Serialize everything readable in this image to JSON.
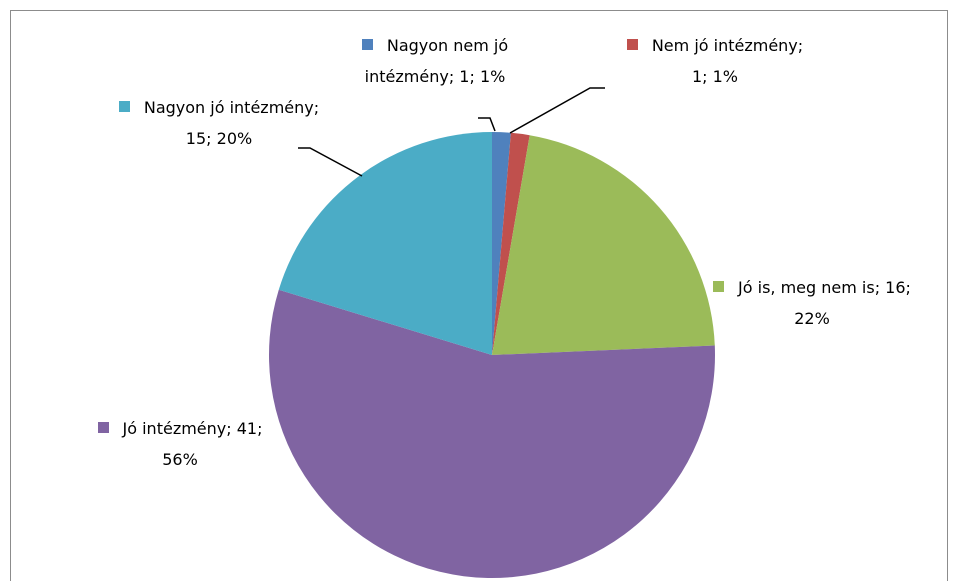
{
  "chart_data": {
    "type": "pie",
    "values": [
      1,
      1,
      16,
      41,
      15
    ],
    "value_labels": [
      "Nagyon nem jó intézmény; 1; 1%",
      "Nem jó intézmény; 1; 1%",
      "Jó is, meg nem is; 16; 22%",
      "Jó intézmény; 41; 56%",
      "Nagyon jó intézmény; 15; 20%"
    ],
    "colors": [
      "#4f81bd",
      "#c0504d",
      "#9bbb59",
      "#8064a2",
      "#4bacc6"
    ],
    "start_angle": 0,
    "direction": "clockwise"
  }
}
